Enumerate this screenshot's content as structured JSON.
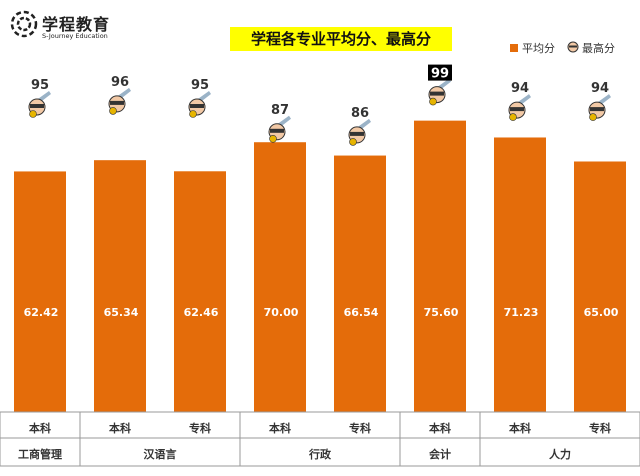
{
  "logo": {
    "name": "学程教育",
    "tagline": "S-Journey Education"
  },
  "legend": {
    "avg_label": "平均分",
    "max_label": "最高分"
  },
  "colors": {
    "avg_bar": "#e46c0a",
    "highlight_box": "#000000",
    "title_bg": "#ffff00"
  },
  "chart_data": {
    "type": "bar",
    "title": "学程各专业平均分、最高分",
    "xlabel": "",
    "ylabel": "",
    "categories": [
      "本科",
      "本科",
      "专科",
      "本科",
      "专科",
      "本科",
      "本科",
      "专科"
    ],
    "groups": [
      {
        "label": "工商管理",
        "span": 1
      },
      {
        "label": "汉语言",
        "span": 2
      },
      {
        "label": "行政",
        "span": 2
      },
      {
        "label": "会计",
        "span": 1
      },
      {
        "label": "人力",
        "span": 2
      }
    ],
    "series": [
      {
        "name": "平均分",
        "values": [
          62.42,
          65.34,
          62.46,
          70.0,
          66.54,
          75.6,
          71.23,
          65.0
        ],
        "labels": [
          "62.42",
          "65.34",
          "62.46",
          "70.00",
          "66.54",
          "75.60",
          "71.23",
          "65.00"
        ]
      },
      {
        "name": "最高分",
        "values": [
          95,
          96,
          95,
          87,
          86,
          99,
          94,
          94
        ]
      }
    ],
    "highlight_max_index": 5,
    "ylim": [
      0,
      100
    ],
    "grid": false,
    "legend_position": "top-right"
  }
}
